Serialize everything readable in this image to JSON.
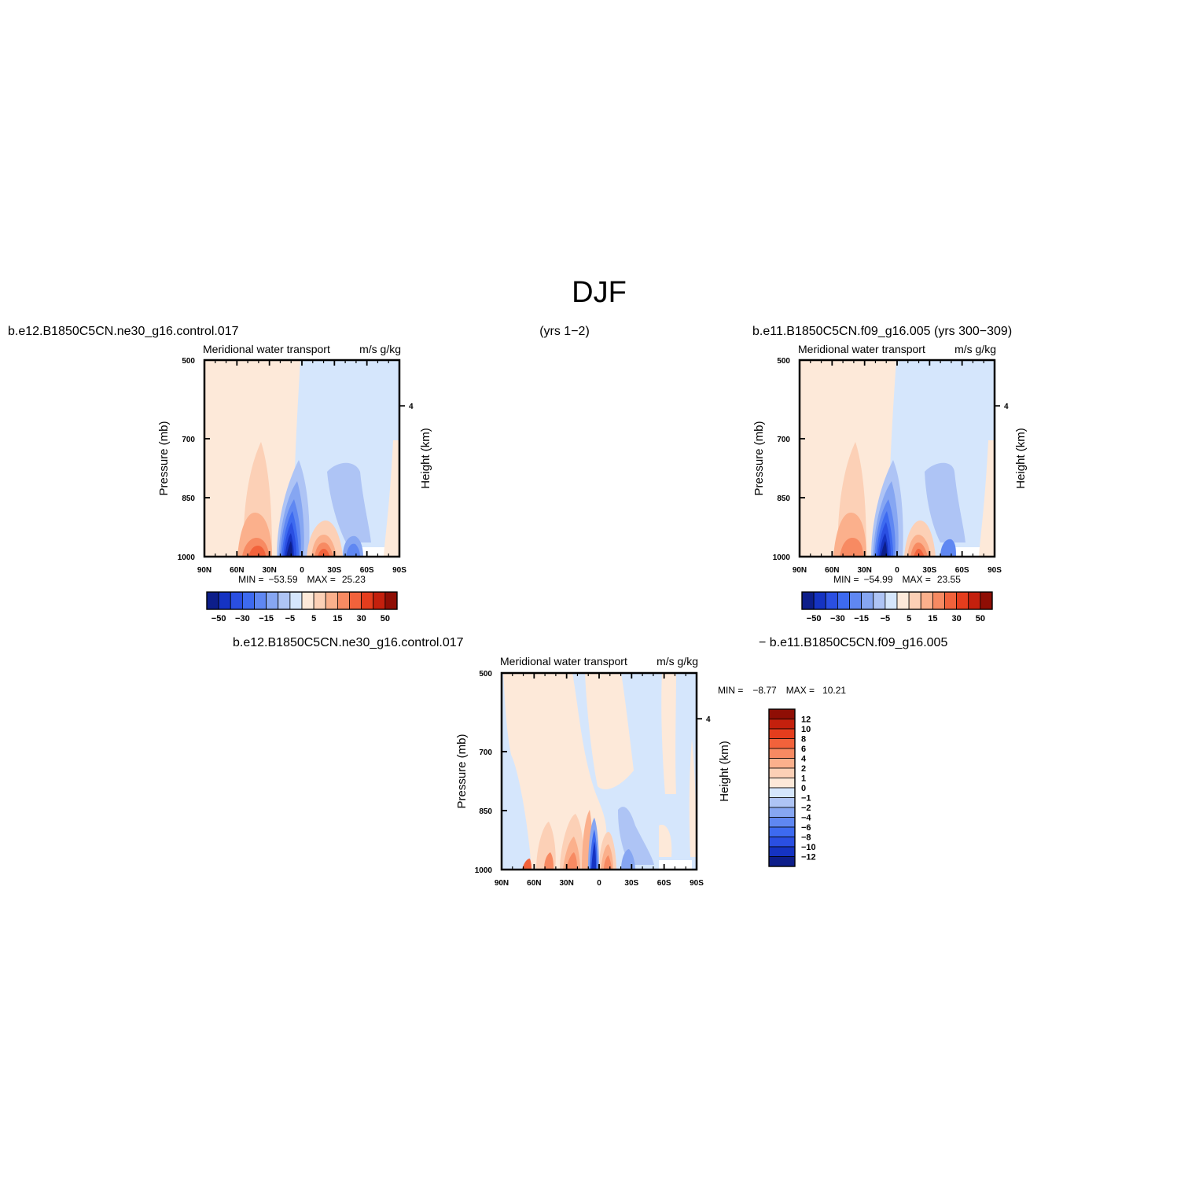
{
  "page_title": "DJF",
  "top_left": {
    "case_label": "b.e12.B1850C5CN.ne30_g16.control.017",
    "years_label": "(yrs 1−2)",
    "plot_title": "Meridional water transport",
    "units": "m/s g/kg",
    "ylabel": "Pressure (mb)",
    "right_label": "Height (km)",
    "stats": {
      "min_label": "MIN =",
      "min": "−53.59",
      "max_label": "MAX =",
      "max": "25.23"
    }
  },
  "top_right": {
    "case_label": "b.e11.B1850C5CN.f09_g16.005 (yrs 300−309)",
    "plot_title": "Meridional water transport",
    "units": "m/s g/kg",
    "ylabel": "Pressure (mb)",
    "right_label": "Height (km)",
    "stats": {
      "min_label": "MIN =",
      "min": "−54.99",
      "max_label": "MAX =",
      "max": "23.55"
    }
  },
  "bottom": {
    "case_label_left": "b.e12.B1850C5CN.ne30_g16.control.017",
    "case_label_right": "− b.e11.B1850C5CN.f09_g16.005",
    "plot_title": "Meridional water transport",
    "units": "m/s g/kg",
    "ylabel": "Pressure (mb)",
    "right_label": "Height (km)",
    "stats": {
      "min_label": "MIN =",
      "min": "−8.77",
      "max_label": "MAX =",
      "max": "10.21"
    }
  },
  "chart_data": [
    {
      "type": "heatmap",
      "title": "Meridional water transport",
      "units": "m/s g/kg",
      "xticks": [
        "90N",
        "60N",
        "30N",
        "0",
        "30S",
        "60S",
        "90S"
      ],
      "x_values": [
        90,
        60,
        30,
        0,
        -30,
        -60,
        -90
      ],
      "yticks": [
        "500",
        "700",
        "850",
        "1000"
      ],
      "y_values": [
        500,
        700,
        850,
        1000
      ],
      "ylabel": "Pressure (mb)",
      "right_ticks": [
        "4"
      ],
      "right_label": "Height (km)",
      "min": -53.59,
      "max": 25.23,
      "colorbar_labels": [
        "−50",
        "−30",
        "−15",
        "−5",
        "5",
        "15",
        "30",
        "50"
      ],
      "colors": [
        "#0d1e8a",
        "#1533c2",
        "#2a4fe2",
        "#3d6af0",
        "#5f87f2",
        "#86a6f2",
        "#aec4f5",
        "#d5e6fc",
        "#fde9d9",
        "#fcd0b6",
        "#fbb08c",
        "#f78a62",
        "#f2623b",
        "#e53d1d",
        "#c4200d",
        "#8f0e05"
      ]
    },
    {
      "type": "heatmap",
      "title": "Meridional water transport",
      "units": "m/s g/kg",
      "xticks": [
        "90N",
        "60N",
        "30N",
        "0",
        "30S",
        "60S",
        "90S"
      ],
      "x_values": [
        90,
        60,
        30,
        0,
        -30,
        -60,
        -90
      ],
      "yticks": [
        "500",
        "700",
        "850",
        "1000"
      ],
      "y_values": [
        500,
        700,
        850,
        1000
      ],
      "ylabel": "Pressure (mb)",
      "right_ticks": [
        "4"
      ],
      "right_label": "Height (km)",
      "min": -54.99,
      "max": 23.55,
      "colorbar_labels": [
        "−50",
        "−30",
        "−15",
        "−5",
        "5",
        "15",
        "30",
        "50"
      ],
      "colors": [
        "#0d1e8a",
        "#1533c2",
        "#2a4fe2",
        "#3d6af0",
        "#5f87f2",
        "#86a6f2",
        "#aec4f5",
        "#d5e6fc",
        "#fde9d9",
        "#fcd0b6",
        "#fbb08c",
        "#f78a62",
        "#f2623b",
        "#e53d1d",
        "#c4200d",
        "#8f0e05"
      ]
    },
    {
      "type": "heatmap",
      "title": "Meridional water transport",
      "units": "m/s g/kg",
      "xticks": [
        "90N",
        "60N",
        "30N",
        "0",
        "30S",
        "60S",
        "90S"
      ],
      "x_values": [
        90,
        60,
        30,
        0,
        -30,
        -60,
        -90
      ],
      "yticks": [
        "500",
        "700",
        "850",
        "1000"
      ],
      "y_values": [
        500,
        700,
        850,
        1000
      ],
      "ylabel": "Pressure (mb)",
      "right_ticks": [
        "4"
      ],
      "right_label": "Height (km)",
      "min": -8.77,
      "max": 10.21,
      "colorbar_labels": [
        "12",
        "10",
        "8",
        "6",
        "4",
        "2",
        "1",
        "0",
        "−1",
        "−2",
        "−4",
        "−6",
        "−8",
        "−10",
        "−12"
      ],
      "colors": [
        "#8f0e05",
        "#c4200d",
        "#e53d1d",
        "#f2623b",
        "#f78a62",
        "#fbb08c",
        "#fcd0b6",
        "#fde9d9",
        "#d5e6fc",
        "#aec4f5",
        "#86a6f2",
        "#5f87f2",
        "#3d6af0",
        "#2a4fe2",
        "#1533c2",
        "#0d1e8a"
      ]
    }
  ]
}
